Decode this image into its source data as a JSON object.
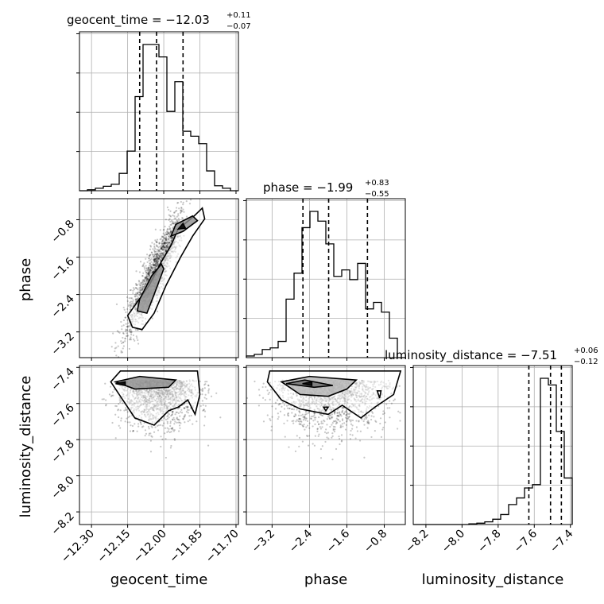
{
  "chart_data": {
    "type": "corner",
    "parameters": [
      "geocent_time",
      "phase",
      "luminosity_distance"
    ],
    "titles": [
      {
        "name": "geocent_time",
        "median": "−12.03",
        "plus": "+0.11",
        "minus": "−0.07"
      },
      {
        "name": "phase",
        "median": "−1.99",
        "plus": "+0.83",
        "minus": "−0.55"
      },
      {
        "name": "luminosity_distance",
        "median": "−7.51",
        "plus": "+0.06",
        "minus": "−0.12"
      }
    ],
    "ranges": {
      "geocent_time": [
        -12.35,
        -11.69
      ],
      "phase": [
        -3.75,
        -0.35
      ],
      "luminosity_distance": [
        -8.27,
        -7.39
      ]
    },
    "ticks": {
      "geocent_time": {
        "values": [
          -12.3,
          -12.15,
          -12.0,
          -11.85,
          -11.7
        ],
        "labels": [
          "−12.30",
          "−12.15",
          "−12.00",
          "−11.85",
          "−11.70"
        ]
      },
      "phase": {
        "values": [
          -3.2,
          -2.4,
          -1.6,
          -0.8
        ],
        "labels": [
          "−3.2",
          "−2.4",
          "−1.6",
          "−0.8"
        ]
      },
      "luminosity_distance": {
        "values": [
          -8.2,
          -8.0,
          -7.8,
          -7.6,
          -7.4
        ],
        "labels": [
          "−8.2",
          "−8.0",
          "−7.8",
          "−7.6",
          "−7.4"
        ]
      }
    },
    "quantiles": {
      "geocent_time": [
        -12.1,
        -12.03,
        -11.92
      ],
      "phase": [
        -2.54,
        -1.99,
        -1.16
      ],
      "luminosity_distance": [
        -7.63,
        -7.51,
        -7.45
      ]
    },
    "histograms": {
      "geocent_time": {
        "bins": 20,
        "counts": [
          0,
          0.2,
          0.5,
          0.9,
          1.3,
          3.5,
          8.0,
          19.0,
          29.5,
          29.5,
          27.0,
          16.0,
          22.0,
          12.0,
          11.0,
          9.5,
          4.0,
          1.0,
          0.5,
          0
        ]
      },
      "phase": {
        "bins": 20,
        "counts": [
          0.5,
          1,
          2.5,
          3,
          5,
          18,
          26,
          40,
          45,
          42,
          35,
          25,
          27,
          24,
          29,
          15,
          17,
          14,
          6,
          0
        ]
      },
      "luminosity_distance": {
        "bins": 20,
        "counts": [
          0,
          0,
          0,
          0,
          0,
          0,
          0,
          0.1,
          0.2,
          0.4,
          0.8,
          1.5,
          3.0,
          4.0,
          5.5,
          6.0,
          22.0,
          21.0,
          14.0,
          7.0
        ]
      }
    },
    "axis_labels": [
      "geocent_time",
      "phase",
      "luminosity_distance"
    ],
    "grid": true
  }
}
